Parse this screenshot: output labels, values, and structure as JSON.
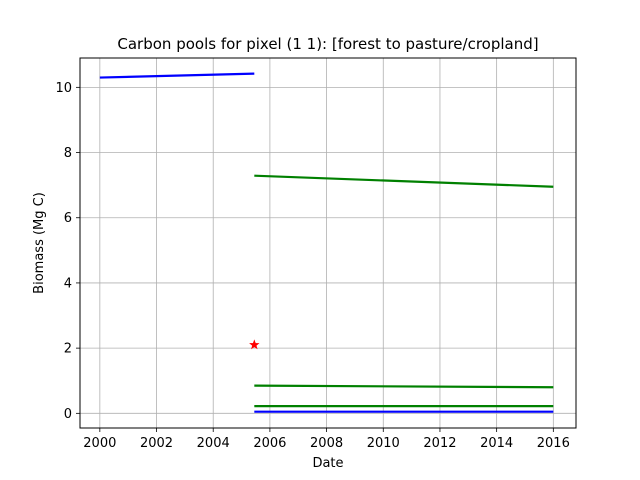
{
  "chart_data": {
    "type": "line",
    "title": "Carbon pools for pixel (1 1): [forest to pasture/cropland]",
    "xlabel": "Date",
    "ylabel": "Biomass (Mg C)",
    "xlim": [
      1999.3,
      2016.8
    ],
    "ylim": [
      -0.45,
      10.9
    ],
    "x_ticks": [
      2000,
      2002,
      2004,
      2006,
      2008,
      2010,
      2012,
      2014,
      2016
    ],
    "y_ticks": [
      0,
      2,
      4,
      6,
      8,
      10
    ],
    "grid": true,
    "series": [
      {
        "color": "#0000ff",
        "x": [
          2000.0,
          2005.45
        ],
        "y": [
          10.3,
          10.42
        ]
      },
      {
        "color": "#008000",
        "x": [
          2005.45,
          2016.0
        ],
        "y": [
          7.29,
          6.95
        ]
      },
      {
        "color": "#008000",
        "x": [
          2005.45,
          2016.0
        ],
        "y": [
          0.85,
          0.8
        ]
      },
      {
        "color": "#008000",
        "x": [
          2005.45,
          2016.0
        ],
        "y": [
          0.22,
          0.22
        ]
      },
      {
        "color": "#0000ff",
        "x": [
          2005.45,
          2016.0
        ],
        "y": [
          0.05,
          0.05
        ]
      }
    ],
    "markers": [
      {
        "shape": "star",
        "color": "#ff0000",
        "x": 2005.45,
        "y": 2.1
      }
    ]
  }
}
